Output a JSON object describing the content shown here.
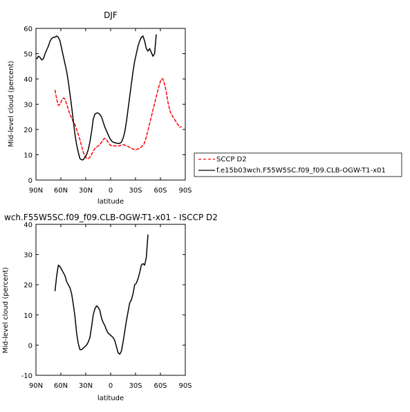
{
  "chart_data": [
    {
      "type": "line",
      "title": "DJF",
      "xlabel": "latitude",
      "ylabel": "Mid-level cloud (percent)",
      "xlim": [
        90,
        -90
      ],
      "ylim": [
        0,
        60
      ],
      "xticks": [
        90,
        60,
        30,
        0,
        -30,
        -60,
        -90
      ],
      "xtick_labels": [
        "90N",
        "60N",
        "30N",
        "0",
        "30S",
        "60S",
        "90S"
      ],
      "yticks": [
        0,
        10,
        20,
        30,
        40,
        50,
        60
      ],
      "ytick_labels": [
        "0",
        "10",
        "20",
        "30",
        "40",
        "50",
        "60"
      ],
      "legend_position": "right",
      "series": [
        {
          "name": "SCCP D2",
          "color": "#ff0000",
          "dash": "dashed",
          "points": [
            [
              67,
              35.5
            ],
            [
              65,
              32
            ],
            [
              63,
              29.5
            ],
            [
              61,
              30
            ],
            [
              59,
              31.5
            ],
            [
              57,
              32.5
            ],
            [
              55,
              32
            ],
            [
              53,
              30
            ],
            [
              51,
              28
            ],
            [
              49,
              26
            ],
            [
              47,
              24.5
            ],
            [
              45,
              23
            ],
            [
              43,
              22
            ],
            [
              41,
              20
            ],
            [
              39,
              18
            ],
            [
              37,
              16
            ],
            [
              35,
              13.5
            ],
            [
              33,
              11
            ],
            [
              31,
              9.5
            ],
            [
              29,
              8.5
            ],
            [
              27,
              8.5
            ],
            [
              25,
              9
            ],
            [
              23,
              10
            ],
            [
              21,
              11.5
            ],
            [
              19,
              12.5
            ],
            [
              17,
              13
            ],
            [
              15,
              13.5
            ],
            [
              13,
              14
            ],
            [
              11,
              15
            ],
            [
              9,
              16
            ],
            [
              7,
              16.5
            ],
            [
              5,
              16
            ],
            [
              3,
              15
            ],
            [
              1,
              14
            ],
            [
              -1,
              13.5
            ],
            [
              -5,
              13.5
            ],
            [
              -10,
              13.5
            ],
            [
              -15,
              14
            ],
            [
              -20,
              13.5
            ],
            [
              -25,
              12.5
            ],
            [
              -30,
              12
            ],
            [
              -35,
              12.5
            ],
            [
              -40,
              14
            ],
            [
              -43,
              17
            ],
            [
              -46,
              21
            ],
            [
              -49,
              25
            ],
            [
              -52,
              29
            ],
            [
              -55,
              33
            ],
            [
              -57,
              35.5
            ],
            [
              -59,
              38
            ],
            [
              -61,
              40
            ],
            [
              -63,
              40
            ],
            [
              -65,
              38
            ],
            [
              -67,
              35
            ],
            [
              -69,
              31
            ],
            [
              -71,
              28
            ],
            [
              -73,
              26
            ],
            [
              -75,
              25
            ],
            [
              -77,
              24
            ],
            [
              -79,
              23
            ],
            [
              -81,
              22
            ],
            [
              -83,
              21
            ],
            [
              -85,
              21
            ]
          ]
        },
        {
          "name": "f.e15b03wch.F55W5SC.f09_f09.CLB-OGW-T1-x01",
          "color": "#000000",
          "dash": "solid",
          "points": [
            [
              89,
              48
            ],
            [
              87,
              49
            ],
            [
              85,
              48.5
            ],
            [
              83,
              47.5
            ],
            [
              81,
              48
            ],
            [
              79,
              50
            ],
            [
              77,
              51.5
            ],
            [
              75,
              53
            ],
            [
              73,
              55
            ],
            [
              71,
              56
            ],
            [
              69,
              56.5
            ],
            [
              67,
              56.5
            ],
            [
              65,
              57
            ],
            [
              63,
              56.5
            ],
            [
              61,
              55
            ],
            [
              59,
              52
            ],
            [
              57,
              49
            ],
            [
              55,
              46
            ],
            [
              53,
              43
            ],
            [
              51,
              39
            ],
            [
              49,
              34
            ],
            [
              47,
              29
            ],
            [
              45,
              23.5
            ],
            [
              43,
              18
            ],
            [
              41,
              14
            ],
            [
              39,
              11
            ],
            [
              37,
              8.5
            ],
            [
              35,
              8
            ],
            [
              33,
              8
            ],
            [
              31,
              9
            ],
            [
              29,
              10
            ],
            [
              27,
              12
            ],
            [
              25,
              15
            ],
            [
              23,
              19
            ],
            [
              21,
              24
            ],
            [
              19,
              26
            ],
            [
              17,
              26.5
            ],
            [
              15,
              26.5
            ],
            [
              13,
              26
            ],
            [
              11,
              25
            ],
            [
              9,
              23
            ],
            [
              7,
              21
            ],
            [
              5,
              19.5
            ],
            [
              3,
              18
            ],
            [
              1,
              16.5
            ],
            [
              -1,
              15.5
            ],
            [
              -3,
              15
            ],
            [
              -5,
              14.8
            ],
            [
              -7,
              14.6
            ],
            [
              -9,
              14.5
            ],
            [
              -11,
              14.5
            ],
            [
              -13,
              15
            ],
            [
              -15,
              16.5
            ],
            [
              -17,
              19
            ],
            [
              -19,
              23
            ],
            [
              -21,
              28
            ],
            [
              -23,
              33
            ],
            [
              -25,
              38
            ],
            [
              -27,
              43
            ],
            [
              -29,
              47
            ],
            [
              -31,
              50
            ],
            [
              -33,
              53
            ],
            [
              -35,
              55
            ],
            [
              -37,
              56.5
            ],
            [
              -39,
              57
            ],
            [
              -41,
              55
            ],
            [
              -43,
              52
            ],
            [
              -45,
              51
            ],
            [
              -47,
              52
            ],
            [
              -49,
              50.5
            ],
            [
              -51,
              49
            ],
            [
              -53,
              50
            ],
            [
              -55,
              57.5
            ]
          ],
          "x_note": "none"
        }
      ]
    },
    {
      "type": "line",
      "title": "wch.F55W5SC.f09_f09.CLB-OGW-T1-x01 - ISCCP D2",
      "xlabel": "latitude",
      "ylabel": "Mid-level cloud (percent)",
      "xlim": [
        90,
        -90
      ],
      "ylim": [
        -10,
        40
      ],
      "xticks": [
        90,
        60,
        30,
        0,
        -30,
        -60,
        -90
      ],
      "xtick_labels": [
        "90N",
        "60N",
        "30N",
        "0",
        "30S",
        "60S",
        "90S"
      ],
      "yticks": [
        -10,
        0,
        10,
        20,
        30,
        40
      ],
      "ytick_labels": [
        "-10",
        "0",
        "10",
        "20",
        "30",
        "40"
      ],
      "series": [
        {
          "name": "",
          "color": "#000000",
          "dash": "solid",
          "points": [
            [
              67,
              18
            ],
            [
              65,
              23
            ],
            [
              63,
              26.5
            ],
            [
              61,
              26
            ],
            [
              59,
              25
            ],
            [
              57,
              24
            ],
            [
              55,
              23
            ],
            [
              53,
              21
            ],
            [
              51,
              20
            ],
            [
              49,
              19
            ],
            [
              47,
              17
            ],
            [
              45,
              13.5
            ],
            [
              43,
              9.5
            ],
            [
              41,
              4
            ],
            [
              39,
              0.5
            ],
            [
              37,
              -1.5
            ],
            [
              35,
              -1.5
            ],
            [
              33,
              -1
            ],
            [
              31,
              -0.5
            ],
            [
              29,
              0
            ],
            [
              27,
              1
            ],
            [
              25,
              2.5
            ],
            [
              23,
              6
            ],
            [
              21,
              10
            ],
            [
              19,
              12
            ],
            [
              17,
              13
            ],
            [
              15,
              12.5
            ],
            [
              13,
              11.5
            ],
            [
              11,
              9
            ],
            [
              9,
              7.5
            ],
            [
              7,
              6.5
            ],
            [
              5,
              5
            ],
            [
              3,
              4
            ],
            [
              1,
              3.5
            ],
            [
              -1,
              3
            ],
            [
              -3,
              2.5
            ],
            [
              -5,
              1.5
            ],
            [
              -7,
              -0.5
            ],
            [
              -9,
              -2.5
            ],
            [
              -11,
              -3
            ],
            [
              -13,
              -2
            ],
            [
              -15,
              1
            ],
            [
              -17,
              4.5
            ],
            [
              -19,
              8
            ],
            [
              -21,
              11
            ],
            [
              -23,
              14
            ],
            [
              -25,
              15
            ],
            [
              -27,
              17
            ],
            [
              -29,
              20
            ],
            [
              -31,
              20.5
            ],
            [
              -33,
              22
            ],
            [
              -35,
              24
            ],
            [
              -37,
              26.5
            ],
            [
              -39,
              27
            ],
            [
              -41,
              26.5
            ],
            [
              -43,
              29
            ],
            [
              -45,
              36.5
            ]
          ]
        }
      ]
    }
  ]
}
